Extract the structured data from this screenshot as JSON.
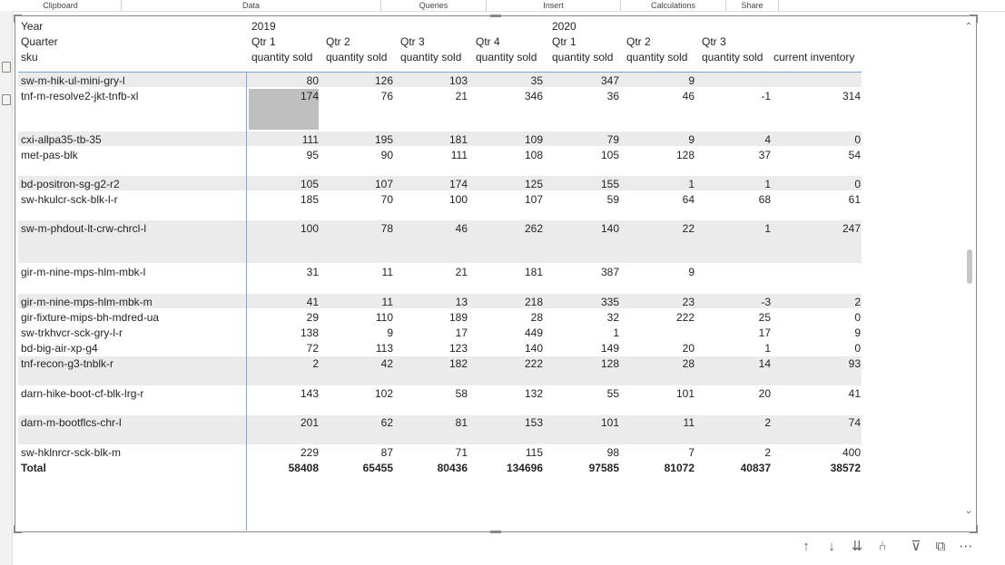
{
  "ribbon": {
    "groups": [
      "Clipboard",
      "Data",
      "Queries",
      "Insert",
      "Calculations",
      "Share"
    ]
  },
  "matrix": {
    "header_labels": {
      "year": "Year",
      "quarter": "Quarter",
      "sku": "sku"
    },
    "years": {
      "y2019": "2019",
      "y2020": "2020"
    },
    "quarters": [
      "Qtr 1",
      "Qtr 2",
      "Qtr 3",
      "Qtr 4",
      "Qtr 1",
      "Qtr 2",
      "Qtr 3"
    ],
    "measure": "quantity sold",
    "inventory_header": "current inventory",
    "rows": [
      {
        "sku": "sw-m-hik-ul-mini-gry-l",
        "v": [
          "80",
          "126",
          "103",
          "35",
          "347",
          "9",
          "",
          ""
        ]
      },
      {
        "sku": "tnf-m-resolve2-jkt-tnfb-xl",
        "v": [
          "174",
          "76",
          "21",
          "346",
          "36",
          "46",
          "-1",
          "314"
        ]
      },
      {
        "sku": "cxi-allpa35-tb-35",
        "v": [
          "111",
          "195",
          "181",
          "109",
          "79",
          "9",
          "4",
          "0"
        ]
      },
      {
        "sku": "met-pas-blk",
        "v": [
          "95",
          "90",
          "111",
          "108",
          "105",
          "128",
          "37",
          "54"
        ]
      },
      {
        "sku": "bd-positron-sg-g2-r2",
        "v": [
          "105",
          "107",
          "174",
          "125",
          "155",
          "1",
          "1",
          "0"
        ]
      },
      {
        "sku": "sw-hkulcr-sck-blk-l-r",
        "v": [
          "185",
          "70",
          "100",
          "107",
          "59",
          "64",
          "68",
          "61"
        ]
      },
      {
        "sku": "sw-m-phdout-lt-crw-chrcl-l",
        "v": [
          "100",
          "78",
          "46",
          "262",
          "140",
          "22",
          "1",
          "247"
        ]
      },
      {
        "sku": "gir-m-nine-mps-hlm-mbk-l",
        "v": [
          "31",
          "11",
          "21",
          "181",
          "387",
          "9",
          "",
          ""
        ]
      },
      {
        "sku": "gir-m-nine-mps-hlm-mbk-m",
        "v": [
          "41",
          "11",
          "13",
          "218",
          "335",
          "23",
          "-3",
          "2"
        ]
      },
      {
        "sku": "gir-fixture-mips-bh-mdred-ua",
        "v": [
          "29",
          "110",
          "189",
          "28",
          "32",
          "222",
          "25",
          "0"
        ]
      },
      {
        "sku": "sw-trkhvcr-sck-gry-l-r",
        "v": [
          "138",
          "9",
          "17",
          "449",
          "1",
          "",
          "17",
          "9"
        ]
      },
      {
        "sku": "bd-big-air-xp-g4",
        "v": [
          "72",
          "113",
          "123",
          "140",
          "149",
          "20",
          "1",
          "0"
        ]
      },
      {
        "sku": "tnf-recon-g3-tnblk-r",
        "v": [
          "2",
          "42",
          "182",
          "222",
          "128",
          "28",
          "14",
          "93"
        ]
      },
      {
        "sku": "darn-hike-boot-cf-blk-lrg-r",
        "v": [
          "143",
          "102",
          "58",
          "132",
          "55",
          "101",
          "20",
          "41"
        ]
      },
      {
        "sku": "darn-m-bootflcs-chr-l",
        "v": [
          "201",
          "62",
          "81",
          "153",
          "101",
          "11",
          "2",
          "74"
        ]
      },
      {
        "sku": "sw-hklnrcr-sck-blk-m",
        "v": [
          "229",
          "87",
          "71",
          "115",
          "98",
          "7",
          "2",
          "400"
        ]
      }
    ],
    "total": {
      "label": "Total",
      "v": [
        "58408",
        "65455",
        "80436",
        "134696",
        "97585",
        "81072",
        "40837",
        "38572"
      ]
    }
  },
  "icons": [
    "arrow-up-icon",
    "arrow-down-icon",
    "double-arrow-down-icon",
    "expand-hierarchy-icon",
    "filter-icon",
    "focus-mode-icon",
    "more-options-icon"
  ],
  "colors": {
    "header_line": "#7ea7d8",
    "band": "#ebebeb",
    "selected_cell": "#bfbfbf"
  }
}
